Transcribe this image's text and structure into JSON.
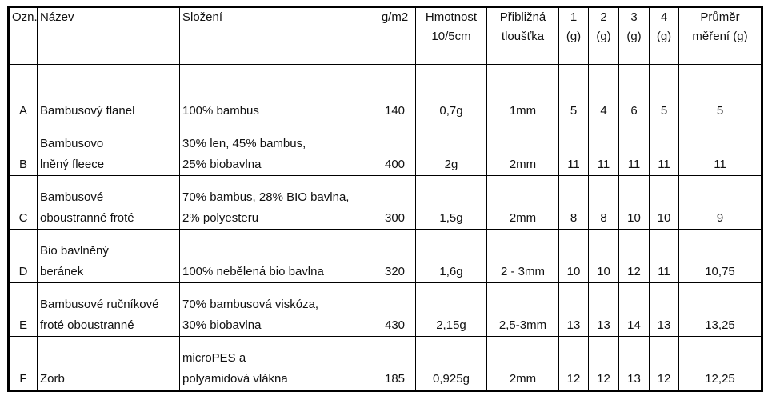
{
  "headers": {
    "ozn": "Ozn.",
    "nazev": "Název",
    "slozeni": "Složení",
    "gm2": "g/m2",
    "hmotnost": [
      "Hmotnost",
      "10/5cm"
    ],
    "tloustka": [
      "Přibližná",
      "tloušťka"
    ],
    "m1": [
      "1",
      "(g)"
    ],
    "m2": [
      "2",
      "(g)"
    ],
    "m3": [
      "3",
      "(g)"
    ],
    "m4": [
      "4",
      "(g)"
    ],
    "prumer": [
      "Průměr",
      "měření (g)"
    ]
  },
  "rows": [
    {
      "ozn": "A",
      "nazev": [
        "Bambusový flanel"
      ],
      "slozeni": [
        "100% bambus"
      ],
      "gm2": "140",
      "hmotnost": "0,7g",
      "tloustka": "1mm",
      "m1": "5",
      "m2": "4",
      "m3": "6",
      "m4": "5",
      "prumer": "5"
    },
    {
      "ozn": "B",
      "nazev": [
        "Bambusovo",
        "lněný fleece"
      ],
      "slozeni": [
        "30% len, 45% bambus,",
        "25% biobavlna"
      ],
      "gm2": "400",
      "hmotnost": "2g",
      "tloustka": "2mm",
      "m1": "11",
      "m2": "11",
      "m3": "11",
      "m4": "11",
      "prumer": "11"
    },
    {
      "ozn": "C",
      "nazev": [
        "Bambusové",
        "oboustranné froté"
      ],
      "slozeni": [
        "70% bambus, 28% BIO bavlna,",
        "2% polyesteru"
      ],
      "gm2": "300",
      "hmotnost": "1,5g",
      "tloustka": "2mm",
      "m1": "8",
      "m2": "8",
      "m3": "10",
      "m4": "10",
      "prumer": "9"
    },
    {
      "ozn": "D",
      "nazev": [
        "Bio bavlněný",
        "beránek"
      ],
      "slozeni": [
        "100% nebělená bio bavlna"
      ],
      "gm2": "320",
      "hmotnost": "1,6g",
      "tloustka": "2 - 3mm",
      "m1": "10",
      "m2": "10",
      "m3": "12",
      "m4": "11",
      "prumer": "10,75"
    },
    {
      "ozn": "E",
      "nazev": [
        "Bambusové ručníkové",
        "froté oboustranné"
      ],
      "slozeni": [
        "70% bambusová viskóza,",
        "30% biobavlna"
      ],
      "gm2": "430",
      "hmotnost": "2,15g",
      "tloustka": "2,5-3mm",
      "m1": "13",
      "m2": "13",
      "m3": "14",
      "m4": "13",
      "prumer": "13,25"
    },
    {
      "ozn": "F",
      "nazev": [
        "Zorb"
      ],
      "slozeni": [
        "microPES a",
        "polyamidová vlákna"
      ],
      "gm2": "185",
      "hmotnost": "0,925g",
      "tloustka": "2mm",
      "m1": "12",
      "m2": "12",
      "m3": "13",
      "m4": "12",
      "prumer": "12,25"
    }
  ]
}
